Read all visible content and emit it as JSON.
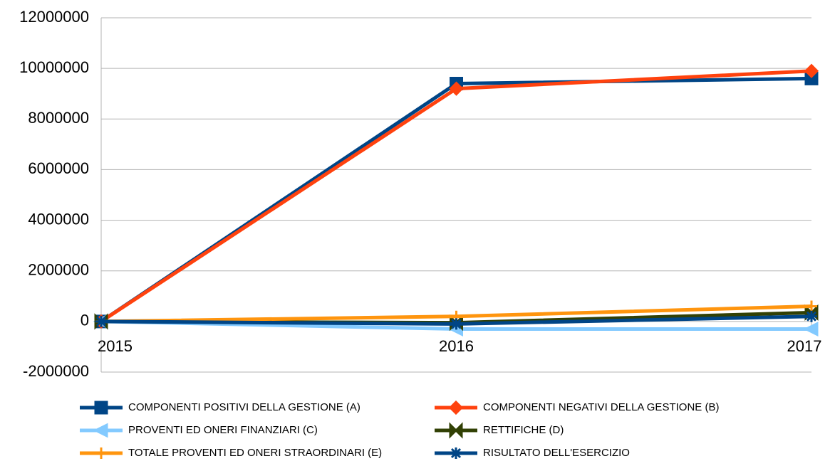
{
  "chart_data": {
    "type": "line",
    "x": [
      2015,
      2016,
      2017
    ],
    "xlim": [
      2015,
      2017
    ],
    "xticks": [
      2015,
      2016,
      2017
    ],
    "ylim": [
      -2000000,
      12000000
    ],
    "yticks": [
      -2000000,
      0,
      2000000,
      4000000,
      6000000,
      8000000,
      10000000,
      12000000
    ],
    "grid": true,
    "legend": "bottom",
    "series": [
      {
        "name": "COMPONENTI POSITIVI DELLA GESTIONE (A)",
        "color": "#004586",
        "marker": "square",
        "values": [
          0,
          9400000,
          9600000
        ]
      },
      {
        "name": "COMPONENTI NEGATIVI DELLA GESTIONE (B)",
        "color": "#ff420e",
        "marker": "diamond",
        "values": [
          0,
          9200000,
          9900000
        ]
      },
      {
        "name": " PROVENTI ED ONERI FINANZIARI (C)",
        "color": "#83caff",
        "marker": "triangle",
        "values": [
          0,
          -300000,
          -300000
        ]
      },
      {
        "name": "RETTIFICHE (D)",
        "color": "#314004",
        "marker": "bowtie",
        "values": [
          0,
          -50000,
          350000
        ]
      },
      {
        "name": "TOTALE PROVENTI ED ONERI STRAORDINARI (E)",
        "color": "#ff950e",
        "marker": "plus",
        "values": [
          0,
          200000,
          600000
        ]
      },
      {
        "name": "RISULTATO DELL'ESERCIZIO",
        "color": "#004586",
        "marker": "star",
        "values": [
          0,
          -100000,
          200000
        ]
      }
    ]
  }
}
